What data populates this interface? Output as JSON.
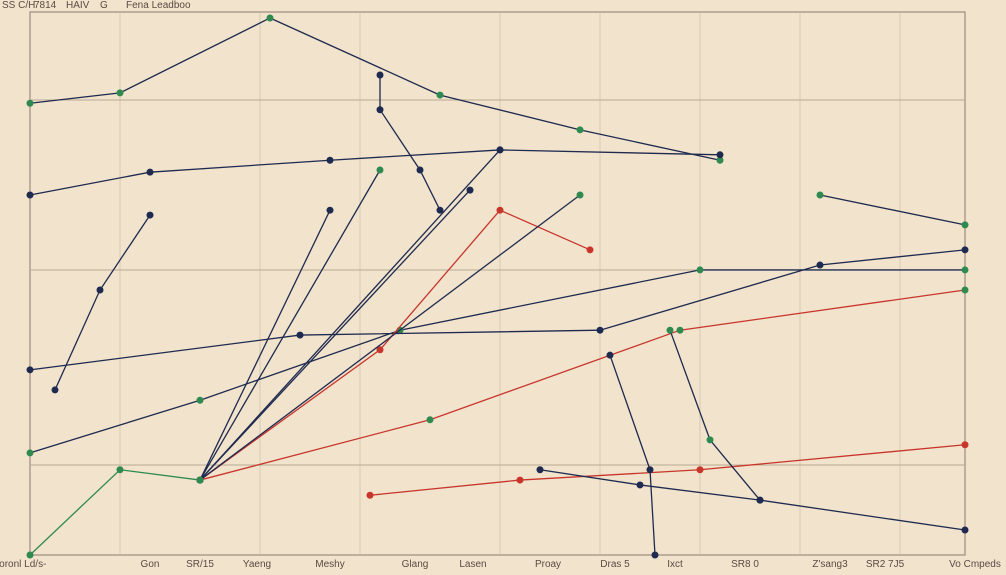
{
  "header": {
    "items": [
      "SS C/H",
      "7814",
      "HAIV",
      "G",
      "Fena Leadboo"
    ]
  },
  "chart_data": {
    "type": "line",
    "title": "",
    "xlabel": "",
    "ylabel": "",
    "grid": true,
    "xlim": [
      30,
      965
    ],
    "ylim": [
      0,
      100
    ],
    "x_tick_labels": [
      "horonl Ld/s-",
      "Gon",
      "SR/15",
      "Yaeng",
      "Meshy",
      "Glang",
      "Lasen",
      "Proay",
      "Dras 5",
      "Ixct",
      "SR8 0",
      "Z'sang3",
      "SR2 7J5",
      "Vo Cmpeds"
    ],
    "colors": {
      "navy": "#1e2a4f",
      "red": "#c8352b",
      "green": "#2f8a4f",
      "grid": "#c9b9a3",
      "background": "#f1e3cc"
    },
    "series": [
      {
        "color": "#1e2a4f",
        "points": [
          [
            30,
            83.2
          ],
          [
            120,
            85.1
          ],
          [
            270,
            98.9
          ],
          [
            440,
            84.7
          ],
          [
            580,
            78.3
          ],
          [
            720,
            72.7
          ]
        ]
      },
      {
        "color": "#1e2a4f",
        "points": [
          [
            30,
            66.3
          ],
          [
            150,
            70.5
          ],
          [
            330,
            72.7
          ],
          [
            500,
            74.6
          ],
          [
            720,
            73.7
          ]
        ]
      },
      {
        "color": "#1e2a4f",
        "points": [
          [
            55,
            30.4
          ],
          [
            100,
            48.8
          ],
          [
            150,
            62.6
          ]
        ]
      },
      {
        "color": "#1e2a4f",
        "points": [
          [
            30,
            18.8
          ],
          [
            200,
            28.5
          ],
          [
            400,
            41.4
          ],
          [
            700,
            52.5
          ],
          [
            965,
            52.5
          ]
        ]
      },
      {
        "color": "#1e2a4f",
        "points": [
          [
            30,
            34.1
          ],
          [
            300,
            40.5
          ],
          [
            600,
            41.4
          ],
          [
            820,
            53.4
          ],
          [
            965,
            56.2
          ]
        ]
      },
      {
        "color": "#c8352b",
        "points": [
          [
            200,
            13.8
          ],
          [
            380,
            37.8
          ],
          [
            500,
            63.5
          ],
          [
            590,
            56.2
          ]
        ]
      },
      {
        "color": "#c8352b",
        "points": [
          [
            200,
            13.8
          ],
          [
            430,
            24.9
          ],
          [
            680,
            41.4
          ],
          [
            965,
            48.8
          ]
        ]
      },
      {
        "color": "#c8352b",
        "points": [
          [
            370,
            11
          ],
          [
            520,
            13.8
          ],
          [
            700,
            15.7
          ],
          [
            965,
            20.3
          ]
        ]
      },
      {
        "color": "#1e2a4f",
        "points": [
          [
            200,
            13.8
          ],
          [
            330,
            63.5
          ]
        ]
      },
      {
        "color": "#1e2a4f",
        "points": [
          [
            200,
            13.8
          ],
          [
            380,
            70.9
          ]
        ]
      },
      {
        "color": "#1e2a4f",
        "points": [
          [
            200,
            13.8
          ],
          [
            470,
            67.2
          ]
        ]
      },
      {
        "color": "#1e2a4f",
        "points": [
          [
            200,
            13.8
          ],
          [
            500,
            74.6
          ]
        ]
      },
      {
        "color": "#1e2a4f",
        "points": [
          [
            200,
            13.8
          ],
          [
            580,
            66.3
          ]
        ]
      },
      {
        "color": "#1e2a4f",
        "points": [
          [
            380,
            88.4
          ],
          [
            380,
            82
          ],
          [
            420,
            70.9
          ],
          [
            440,
            63.5
          ]
        ]
      },
      {
        "color": "#1e2a4f",
        "points": [
          [
            610,
            36.8
          ],
          [
            650,
            15.7
          ],
          [
            655,
            0
          ]
        ]
      },
      {
        "color": "#1e2a4f",
        "points": [
          [
            670,
            41.4
          ],
          [
            710,
            21.2
          ],
          [
            760,
            10.1
          ]
        ]
      },
      {
        "color": "#1e2a4f",
        "points": [
          [
            540,
            15.7
          ],
          [
            640,
            12.9
          ],
          [
            760,
            10.1
          ],
          [
            965,
            4.6
          ]
        ]
      },
      {
        "color": "#2f8a4f",
        "points": [
          [
            30,
            0
          ],
          [
            120,
            15.7
          ],
          [
            200,
            13.8
          ]
        ]
      },
      {
        "color": "#1e2a4f",
        "points": [
          [
            820,
            66.3
          ],
          [
            965,
            60.8
          ]
        ]
      }
    ]
  }
}
